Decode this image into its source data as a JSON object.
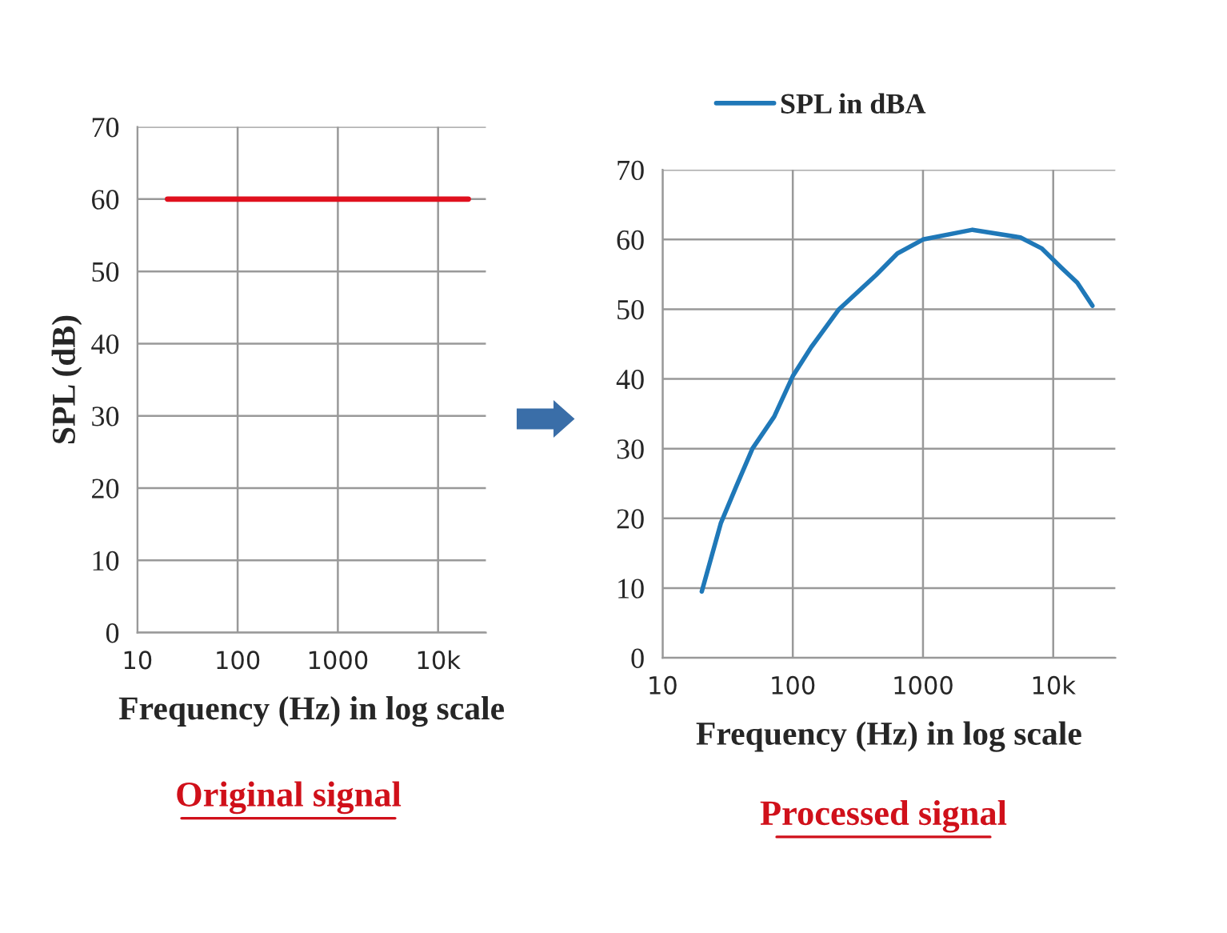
{
  "chart_data": [
    {
      "type": "line",
      "xlabel": "Frequency (Hz) in log scale",
      "ylabel": "SPL (dB)",
      "log": "x",
      "xlim": [
        10,
        30000
      ],
      "xticks": [
        10,
        100,
        1000,
        {
          "value": 10000,
          "label": "10k"
        }
      ],
      "ylim": [
        0,
        70
      ],
      "yticks": [
        0,
        10,
        20,
        30,
        40,
        50,
        60,
        70
      ],
      "grid": true,
      "legend": false,
      "annotations": [
        "Original signal"
      ],
      "series": [
        {
          "color": "#e0101e",
          "x": [
            20,
            20000
          ],
          "values": [
            60,
            60
          ]
        }
      ]
    },
    {
      "type": "line",
      "xlabel": "Frequency (Hz) in log scale",
      "log": "x",
      "xlim": [
        10,
        30000
      ],
      "xticks": [
        10,
        100,
        1000,
        {
          "value": 10000,
          "label": "10k"
        }
      ],
      "ylim": [
        0,
        70
      ],
      "yticks": [
        0,
        10,
        20,
        30,
        40,
        50,
        60,
        70
      ],
      "grid": true,
      "legend": "top",
      "annotations": [
        "Processed signal"
      ],
      "series": [
        {
          "name": "SPL in dBA",
          "color": "#1f78b8",
          "x": [
            20,
            28,
            37,
            49,
            72,
            100,
            139,
            224,
            436,
            636,
            1000,
            2400,
            5600,
            8200,
            11500,
            15300,
            20000
          ],
          "values": [
            9.5,
            19.3,
            24.7,
            30,
            34.6,
            40.4,
            44.6,
            49.9,
            54.9,
            58,
            60,
            61.4,
            60.3,
            58.7,
            56,
            53.8,
            50.5
          ]
        }
      ]
    }
  ]
}
